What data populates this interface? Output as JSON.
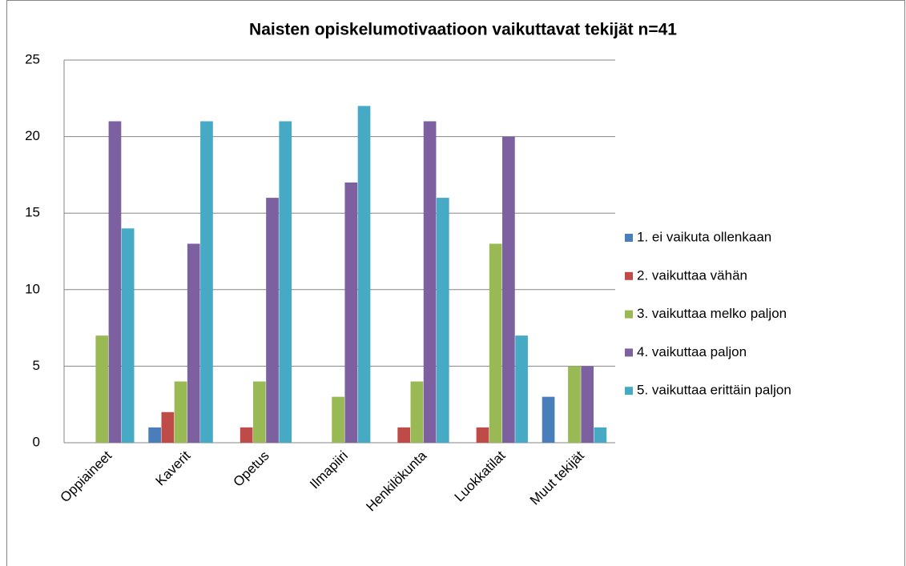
{
  "chart_data": {
    "type": "bar",
    "title": "Naisten opiskelumotivaatioon vaikuttavat tekijät n=41",
    "categories": [
      "Oppiaineet",
      "Kaverit",
      "Opetus",
      "Ilmapiiri",
      "Henkilökunta",
      "Luokkatilat",
      "Muut tekijät"
    ],
    "series": [
      {
        "name": "1. ei vaikuta ollenkaan",
        "color": "#4a7ebb",
        "values": [
          0,
          1,
          0,
          0,
          0,
          0,
          3
        ]
      },
      {
        "name": "2. vaikuttaa vähän",
        "color": "#be4b48",
        "values": [
          0,
          2,
          1,
          0,
          1,
          1,
          0
        ]
      },
      {
        "name": "3. vaikuttaa melko paljon",
        "color": "#98b954",
        "values": [
          7,
          4,
          4,
          3,
          4,
          13,
          5
        ]
      },
      {
        "name": "4. vaikuttaa paljon",
        "color": "#7d60a0",
        "values": [
          21,
          13,
          16,
          17,
          21,
          20,
          5
        ]
      },
      {
        "name": "5. vaikuttaa erittäin paljon",
        "color": "#46aac5",
        "values": [
          14,
          21,
          21,
          22,
          16,
          7,
          1
        ]
      }
    ],
    "ylim": [
      0,
      25
    ],
    "yticks": [
      0,
      5,
      10,
      15,
      20,
      25
    ],
    "grid": true,
    "legend": "right"
  }
}
